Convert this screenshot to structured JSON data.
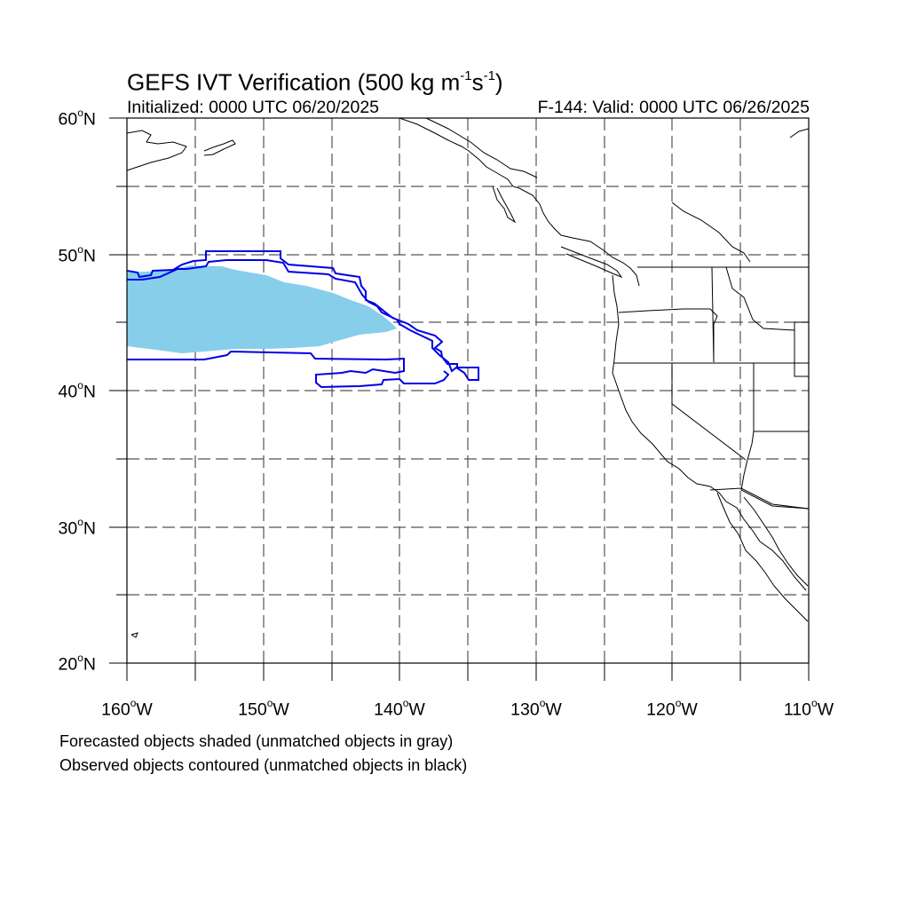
{
  "title": {
    "prefix": "GEFS IVT Verification (500 kg m",
    "sup1": "-1",
    "mid": "s",
    "sup2": "-1",
    "suffix": ")"
  },
  "initialized": "Initialized: 0000 UTC 06/20/2025",
  "valid": "F-144: Valid: 0000 UTC 06/26/2025",
  "lat_labels": [
    {
      "deg": "60",
      "hemi": "N"
    },
    {
      "deg": "50",
      "hemi": "N"
    },
    {
      "deg": "40",
      "hemi": "N"
    },
    {
      "deg": "30",
      "hemi": "N"
    },
    {
      "deg": "20",
      "hemi": "N"
    }
  ],
  "lon_labels": [
    {
      "deg": "160",
      "hemi": "W"
    },
    {
      "deg": "150",
      "hemi": "W"
    },
    {
      "deg": "140",
      "hemi": "W"
    },
    {
      "deg": "130",
      "hemi": "W"
    },
    {
      "deg": "120",
      "hemi": "W"
    },
    {
      "deg": "110",
      "hemi": "W"
    }
  ],
  "footnotes": {
    "forecast": "Forecasted objects shaded (unmatched objects in gray)",
    "observed": "Observed objects contoured (unmatched objects in black)"
  },
  "colors": {
    "forecast_fill": "#87ceeb",
    "observed_contour": "#0000e6",
    "grid": "#555555",
    "coast": "#000000"
  }
}
